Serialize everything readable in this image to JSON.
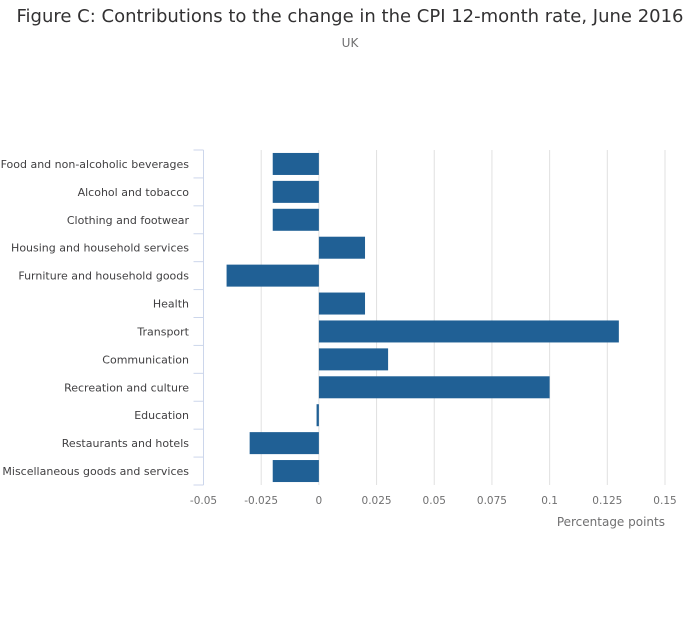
{
  "chart_data": {
    "type": "bar",
    "orientation": "horizontal",
    "title": "Figure C: Contributions to the change in the CPI 12-month rate, June 2016",
    "subtitle": "UK",
    "xlabel": "Percentage points",
    "ylabel": "",
    "xlim": [
      -0.05,
      0.15
    ],
    "xticks": [
      -0.05,
      -0.025,
      0,
      0.025,
      0.05,
      0.075,
      0.1,
      0.125,
      0.15
    ],
    "xtick_labels": [
      "-0.05",
      "-0.025",
      "0",
      "0.025",
      "0.05",
      "0.075",
      "0.1",
      "0.125",
      "0.15"
    ],
    "grid": "vertical",
    "categories": [
      "Food and non-alcoholic beverages",
      "Alcohol and tobacco",
      "Clothing and footwear",
      "Housing and household services",
      "Furniture and household goods",
      "Health",
      "Transport",
      "Communication",
      "Recreation and culture",
      "Education",
      "Restaurants and hotels",
      "Miscellaneous goods and services"
    ],
    "values": [
      -0.02,
      -0.02,
      -0.02,
      0.02,
      -0.04,
      0.02,
      0.13,
      0.03,
      0.1,
      -0.001,
      -0.03,
      -0.02
    ],
    "bar_color": "#206095",
    "grid_color": "#e0e0e0",
    "axis_color": "#ccd6eb"
  }
}
